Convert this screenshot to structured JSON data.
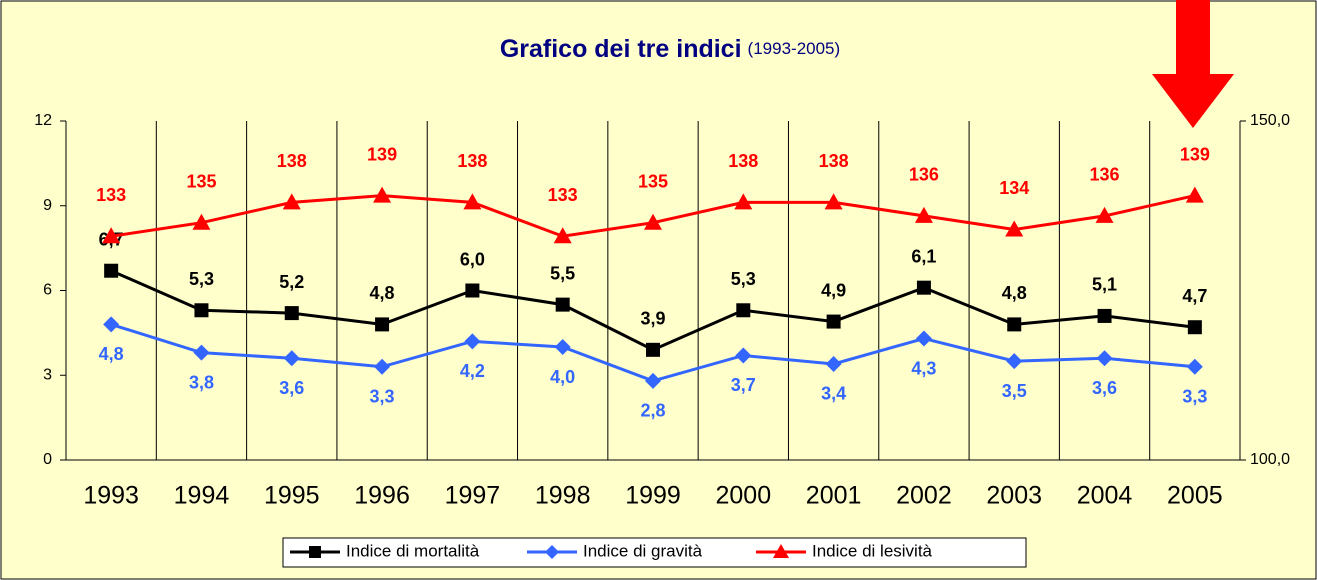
{
  "chart_data": {
    "type": "line",
    "title": "Grafico dei tre indici",
    "subtitle": "(1993-2005)",
    "categories": [
      "1993",
      "1994",
      "1995",
      "1996",
      "1997",
      "1998",
      "1999",
      "2000",
      "2001",
      "2002",
      "2003",
      "2004",
      "2005"
    ],
    "series": [
      {
        "name": "Indice di mortalità",
        "color": "#000000",
        "marker": "square",
        "values": [
          6.7,
          5.3,
          5.2,
          4.8,
          6.0,
          5.5,
          3.9,
          5.3,
          4.9,
          6.1,
          4.8,
          5.1,
          4.7
        ],
        "value_labels": [
          "6,7",
          "5,3",
          "5,2",
          "4,8",
          "6,0",
          "5,5",
          "3,9",
          "5,3",
          "4,9",
          "6,1",
          "4,8",
          "5,1",
          "4,7"
        ]
      },
      {
        "name": "Indice di gravità",
        "color": "#3366FF",
        "marker": "diamond",
        "values": [
          4.8,
          3.8,
          3.6,
          3.3,
          4.2,
          4.0,
          2.8,
          3.7,
          3.4,
          4.3,
          3.5,
          3.6,
          3.3
        ],
        "value_labels": [
          "4,8",
          "3,8",
          "3,6",
          "3,3",
          "4,2",
          "4,0",
          "2,8",
          "3,7",
          "3,4",
          "4,3",
          "3,5",
          "3,6",
          "3,3"
        ]
      },
      {
        "name": "Indice di lesività",
        "color": "#FF0000",
        "marker": "triangle",
        "axis": "y2",
        "values": [
          133,
          135,
          138,
          139,
          138,
          133,
          135,
          138,
          138,
          136,
          134,
          136,
          139
        ]
      }
    ],
    "ylim": [
      0,
      12
    ],
    "yticks": [
      0,
      3,
      6,
      9,
      12
    ],
    "y2lim": [
      100,
      150
    ],
    "y2ticks": [
      {
        "value": 100,
        "label": "100,0"
      },
      {
        "value": 150,
        "label": "150,0"
      }
    ],
    "legend": "bottom"
  }
}
